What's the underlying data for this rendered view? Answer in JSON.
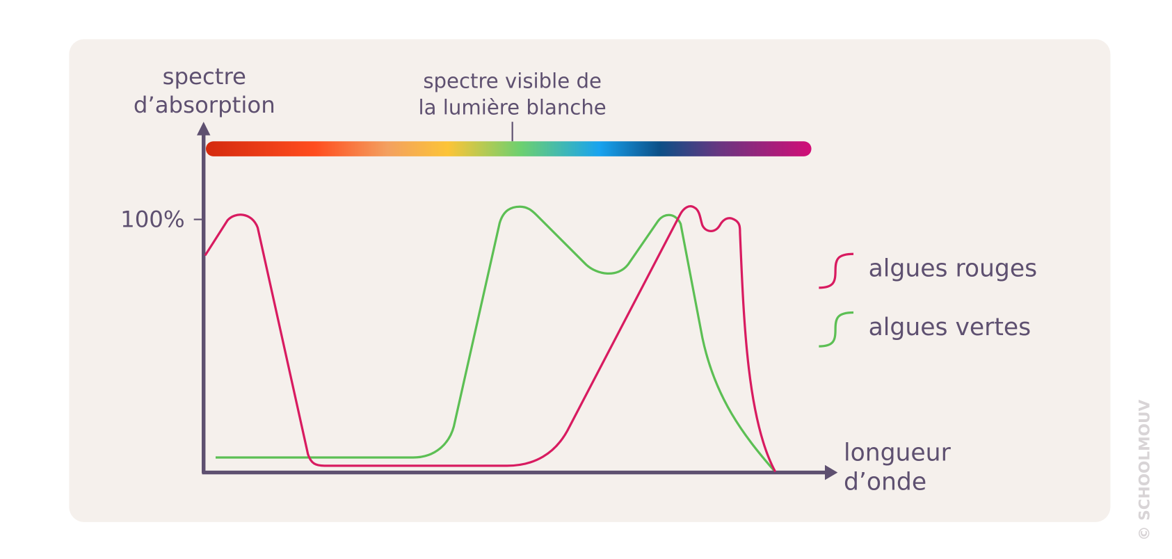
{
  "axes": {
    "y_label": [
      "spectre",
      "d’absorption"
    ],
    "x_label": [
      "longueur",
      "d’onde"
    ],
    "y_tick": "100%"
  },
  "spectrum": {
    "label": [
      "spectre visible de",
      "la lumière blanche"
    ]
  },
  "legend": [
    {
      "label": "algues rouges"
    },
    {
      "label": "algues vertes"
    }
  ],
  "watermark": "© SCHOOLMOUV"
}
